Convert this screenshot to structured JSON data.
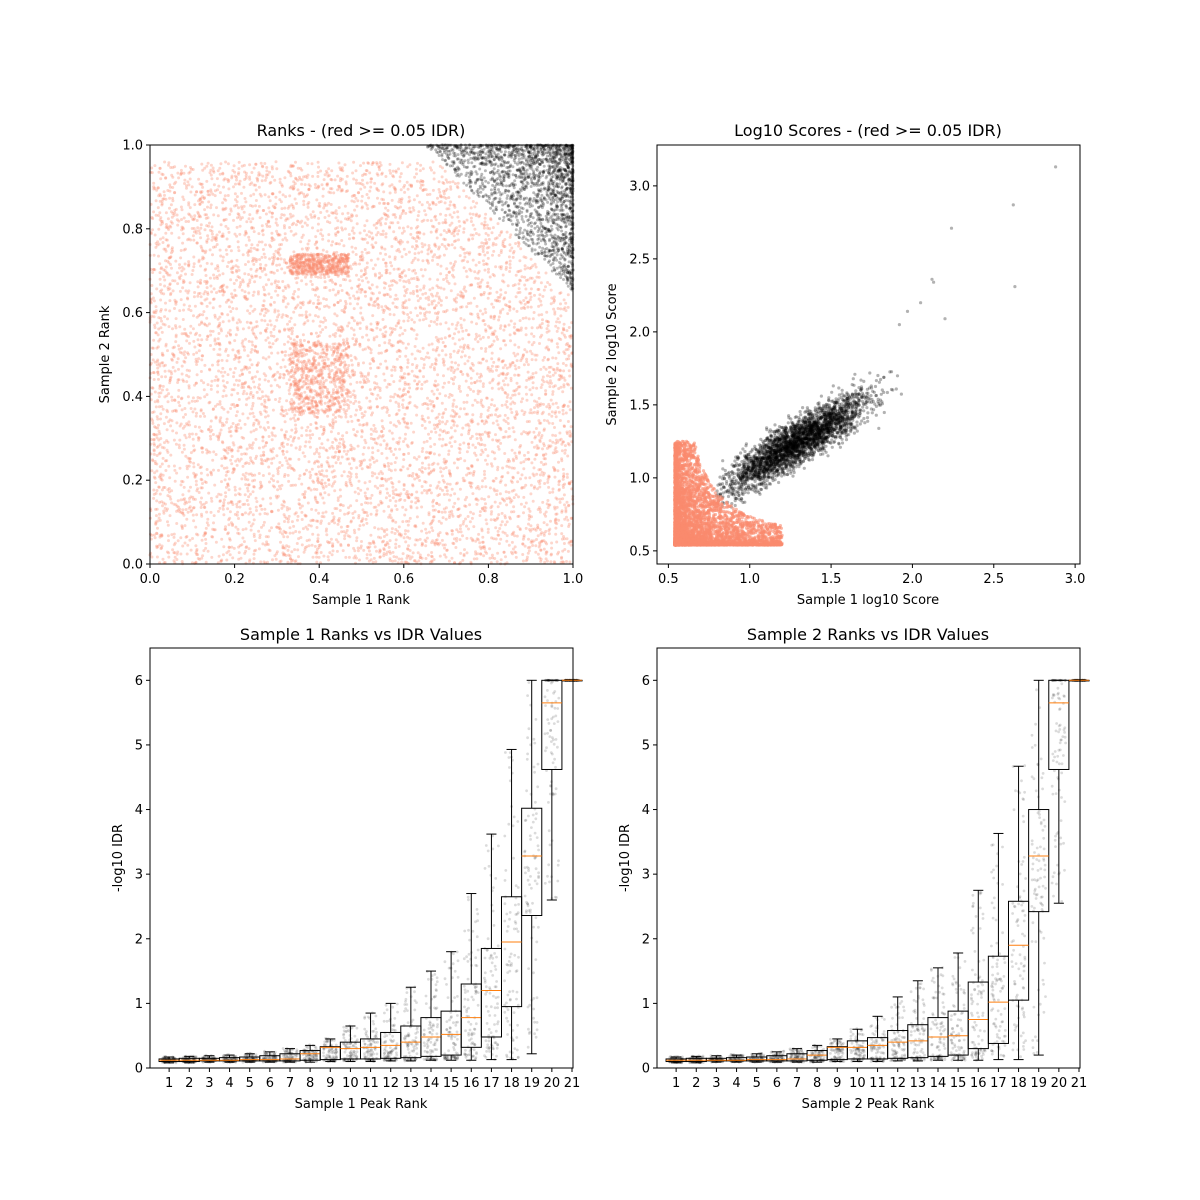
{
  "colors": {
    "pass": "#000000",
    "fail": "#fa8a6e",
    "median": "#ff7f0e",
    "box": "#000000"
  },
  "chart_data": [
    {
      "type": "scatter",
      "title": "Ranks - (red >= 0.05 IDR)",
      "xlabel": "Sample 1 Rank",
      "ylabel": "Sample 2 Rank",
      "xlim": [
        0,
        1
      ],
      "ylim": [
        0,
        1
      ],
      "xticks": [
        "0.0",
        "0.2",
        "0.4",
        "0.6",
        "0.8",
        "1.0"
      ],
      "yticks": [
        "0.0",
        "0.2",
        "0.4",
        "0.6",
        "0.8",
        "1.0"
      ],
      "grid": false,
      "series": [
        {
          "role": "idr-above-threshold",
          "color": "#fa8a6e",
          "region": {
            "min_sum": 0.0,
            "max_sum": 1.64
          },
          "count": 6500
        },
        {
          "role": "idr-below-threshold",
          "color": "#000000",
          "region": {
            "min_sum": 1.64,
            "max_sum": 2.0
          },
          "count": 1800
        }
      ],
      "dense_patches": [
        {
          "x": [
            0.33,
            0.47
          ],
          "y": [
            0.36,
            0.53
          ]
        },
        {
          "x": [
            0.33,
            0.47
          ],
          "y": [
            0.69,
            0.74
          ]
        }
      ]
    },
    {
      "type": "scatter",
      "title": "Log10 Scores - (red >= 0.05 IDR)",
      "xlabel": "Sample 1 log10 Score",
      "ylabel": "Sample 2 log10 Score",
      "xlim": [
        0.43,
        3.03
      ],
      "ylim": [
        0.41,
        3.28
      ],
      "xticks": [
        "0.5",
        "1.0",
        "1.5",
        "2.0",
        "2.5",
        "3.0"
      ],
      "yticks": [
        "0.5",
        "1.0",
        "1.5",
        "2.0",
        "2.5",
        "3.0"
      ],
      "grid": false,
      "series": [
        {
          "role": "idr-above-threshold",
          "color": "#fa8a6e",
          "x_range": [
            0.54,
            1.2
          ],
          "y_range": [
            0.54,
            1.25
          ],
          "count": 5000
        },
        {
          "role": "idr-below-threshold",
          "color": "#000000",
          "center": [
            1.3,
            1.25
          ],
          "spread": [
            0.3,
            0.25
          ],
          "count": 3000
        }
      ],
      "outliers": [
        [
          2.88,
          3.13
        ],
        [
          2.62,
          2.87
        ],
        [
          2.63,
          2.31
        ],
        [
          2.24,
          2.71
        ],
        [
          2.12,
          2.36
        ],
        [
          2.13,
          2.34
        ],
        [
          2.05,
          2.2
        ],
        [
          2.2,
          2.09
        ],
        [
          1.97,
          2.14
        ],
        [
          1.92,
          2.05
        ]
      ]
    },
    {
      "type": "box",
      "title": "Sample 1 Ranks vs IDR Values",
      "xlabel": "Sample 1 Peak Rank",
      "ylabel": "-log10 IDR",
      "xlim": [
        0,
        21
      ],
      "ylim": [
        0,
        6.5
      ],
      "categories": [
        "1",
        "2",
        "3",
        "4",
        "5",
        "6",
        "7",
        "8",
        "9",
        "10",
        "11",
        "12",
        "13",
        "14",
        "15",
        "16",
        "17",
        "18",
        "19",
        "20",
        "21"
      ],
      "yticks": [
        "0",
        "1",
        "2",
        "3",
        "4",
        "5",
        "6"
      ],
      "boxes": [
        {
          "q1": 0.1,
          "median": 0.12,
          "q3": 0.14,
          "whisker_low": 0.08,
          "whisker_high": 0.17
        },
        {
          "q1": 0.1,
          "median": 0.12,
          "q3": 0.15,
          "whisker_low": 0.08,
          "whisker_high": 0.18
        },
        {
          "q1": 0.11,
          "median": 0.12,
          "q3": 0.15,
          "whisker_low": 0.09,
          "whisker_high": 0.19
        },
        {
          "q1": 0.11,
          "median": 0.12,
          "q3": 0.16,
          "whisker_low": 0.09,
          "whisker_high": 0.2
        },
        {
          "q1": 0.11,
          "median": 0.13,
          "q3": 0.17,
          "whisker_low": 0.09,
          "whisker_high": 0.22
        },
        {
          "q1": 0.11,
          "median": 0.13,
          "q3": 0.19,
          "whisker_low": 0.09,
          "whisker_high": 0.25
        },
        {
          "q1": 0.11,
          "median": 0.14,
          "q3": 0.22,
          "whisker_low": 0.09,
          "whisker_high": 0.3
        },
        {
          "q1": 0.12,
          "median": 0.22,
          "q3": 0.27,
          "whisker_low": 0.09,
          "whisker_high": 0.35
        },
        {
          "q1": 0.13,
          "median": 0.32,
          "q3": 0.33,
          "whisker_low": 0.1,
          "whisker_high": 0.45
        },
        {
          "q1": 0.14,
          "median": 0.3,
          "q3": 0.4,
          "whisker_low": 0.1,
          "whisker_high": 0.65
        },
        {
          "q1": 0.14,
          "median": 0.32,
          "q3": 0.45,
          "whisker_low": 0.1,
          "whisker_high": 0.85
        },
        {
          "q1": 0.15,
          "median": 0.35,
          "q3": 0.55,
          "whisker_low": 0.11,
          "whisker_high": 1.0
        },
        {
          "q1": 0.16,
          "median": 0.4,
          "q3": 0.65,
          "whisker_low": 0.11,
          "whisker_high": 1.25
        },
        {
          "q1": 0.18,
          "median": 0.48,
          "q3": 0.78,
          "whisker_low": 0.12,
          "whisker_high": 1.5
        },
        {
          "q1": 0.2,
          "median": 0.52,
          "q3": 0.88,
          "whisker_low": 0.12,
          "whisker_high": 1.8
        },
        {
          "q1": 0.32,
          "median": 0.78,
          "q3": 1.3,
          "whisker_low": 0.12,
          "whisker_high": 2.7
        },
        {
          "q1": 0.48,
          "median": 1.2,
          "q3": 1.85,
          "whisker_low": 0.13,
          "whisker_high": 3.62
        },
        {
          "q1": 0.95,
          "median": 1.95,
          "q3": 2.65,
          "whisker_low": 0.13,
          "whisker_high": 4.93
        },
        {
          "q1": 2.36,
          "median": 3.28,
          "q3": 4.02,
          "whisker_low": 0.22,
          "whisker_high": 6.0
        },
        {
          "q1": 4.62,
          "median": 5.65,
          "q3": 6.0,
          "whisker_low": 2.6,
          "whisker_high": 6.0
        },
        {
          "q1": 6.0,
          "median": 6.0,
          "q3": 6.0,
          "whisker_low": 6.0,
          "whisker_high": 6.0
        }
      ]
    },
    {
      "type": "box",
      "title": "Sample 2 Ranks vs IDR Values",
      "xlabel": "Sample 2 Peak Rank",
      "ylabel": "-log10 IDR",
      "xlim": [
        0,
        21
      ],
      "ylim": [
        0,
        6.5
      ],
      "categories": [
        "1",
        "2",
        "3",
        "4",
        "5",
        "6",
        "7",
        "8",
        "9",
        "10",
        "11",
        "12",
        "13",
        "14",
        "15",
        "16",
        "17",
        "18",
        "19",
        "20",
        "21"
      ],
      "yticks": [
        "0",
        "1",
        "2",
        "3",
        "4",
        "5",
        "6"
      ],
      "boxes": [
        {
          "q1": 0.1,
          "median": 0.12,
          "q3": 0.14,
          "whisker_low": 0.08,
          "whisker_high": 0.17
        },
        {
          "q1": 0.1,
          "median": 0.12,
          "q3": 0.15,
          "whisker_low": 0.08,
          "whisker_high": 0.18
        },
        {
          "q1": 0.11,
          "median": 0.12,
          "q3": 0.15,
          "whisker_low": 0.09,
          "whisker_high": 0.19
        },
        {
          "q1": 0.11,
          "median": 0.12,
          "q3": 0.16,
          "whisker_low": 0.09,
          "whisker_high": 0.2
        },
        {
          "q1": 0.11,
          "median": 0.13,
          "q3": 0.17,
          "whisker_low": 0.09,
          "whisker_high": 0.22
        },
        {
          "q1": 0.11,
          "median": 0.13,
          "q3": 0.19,
          "whisker_low": 0.09,
          "whisker_high": 0.25
        },
        {
          "q1": 0.11,
          "median": 0.14,
          "q3": 0.22,
          "whisker_low": 0.09,
          "whisker_high": 0.3
        },
        {
          "q1": 0.12,
          "median": 0.2,
          "q3": 0.27,
          "whisker_low": 0.09,
          "whisker_high": 0.35
        },
        {
          "q1": 0.13,
          "median": 0.32,
          "q3": 0.33,
          "whisker_low": 0.1,
          "whisker_high": 0.45
        },
        {
          "q1": 0.14,
          "median": 0.32,
          "q3": 0.42,
          "whisker_low": 0.1,
          "whisker_high": 0.6
        },
        {
          "q1": 0.14,
          "median": 0.35,
          "q3": 0.47,
          "whisker_low": 0.1,
          "whisker_high": 0.8
        },
        {
          "q1": 0.15,
          "median": 0.4,
          "q3": 0.58,
          "whisker_low": 0.11,
          "whisker_high": 1.1
        },
        {
          "q1": 0.16,
          "median": 0.42,
          "q3": 0.67,
          "whisker_low": 0.11,
          "whisker_high": 1.35
        },
        {
          "q1": 0.18,
          "median": 0.48,
          "q3": 0.78,
          "whisker_low": 0.12,
          "whisker_high": 1.55
        },
        {
          "q1": 0.2,
          "median": 0.5,
          "q3": 0.88,
          "whisker_low": 0.12,
          "whisker_high": 1.78
        },
        {
          "q1": 0.3,
          "median": 0.75,
          "q3": 1.33,
          "whisker_low": 0.12,
          "whisker_high": 2.75
        },
        {
          "q1": 0.38,
          "median": 1.02,
          "q3": 1.73,
          "whisker_low": 0.13,
          "whisker_high": 3.63
        },
        {
          "q1": 1.05,
          "median": 1.9,
          "q3": 2.58,
          "whisker_low": 0.13,
          "whisker_high": 4.67
        },
        {
          "q1": 2.42,
          "median": 3.28,
          "q3": 4.0,
          "whisker_low": 0.2,
          "whisker_high": 6.0
        },
        {
          "q1": 4.62,
          "median": 5.65,
          "q3": 6.0,
          "whisker_low": 2.55,
          "whisker_high": 6.0
        },
        {
          "q1": 6.0,
          "median": 6.0,
          "q3": 6.0,
          "whisker_low": 6.0,
          "whisker_high": 6.0
        }
      ]
    }
  ]
}
